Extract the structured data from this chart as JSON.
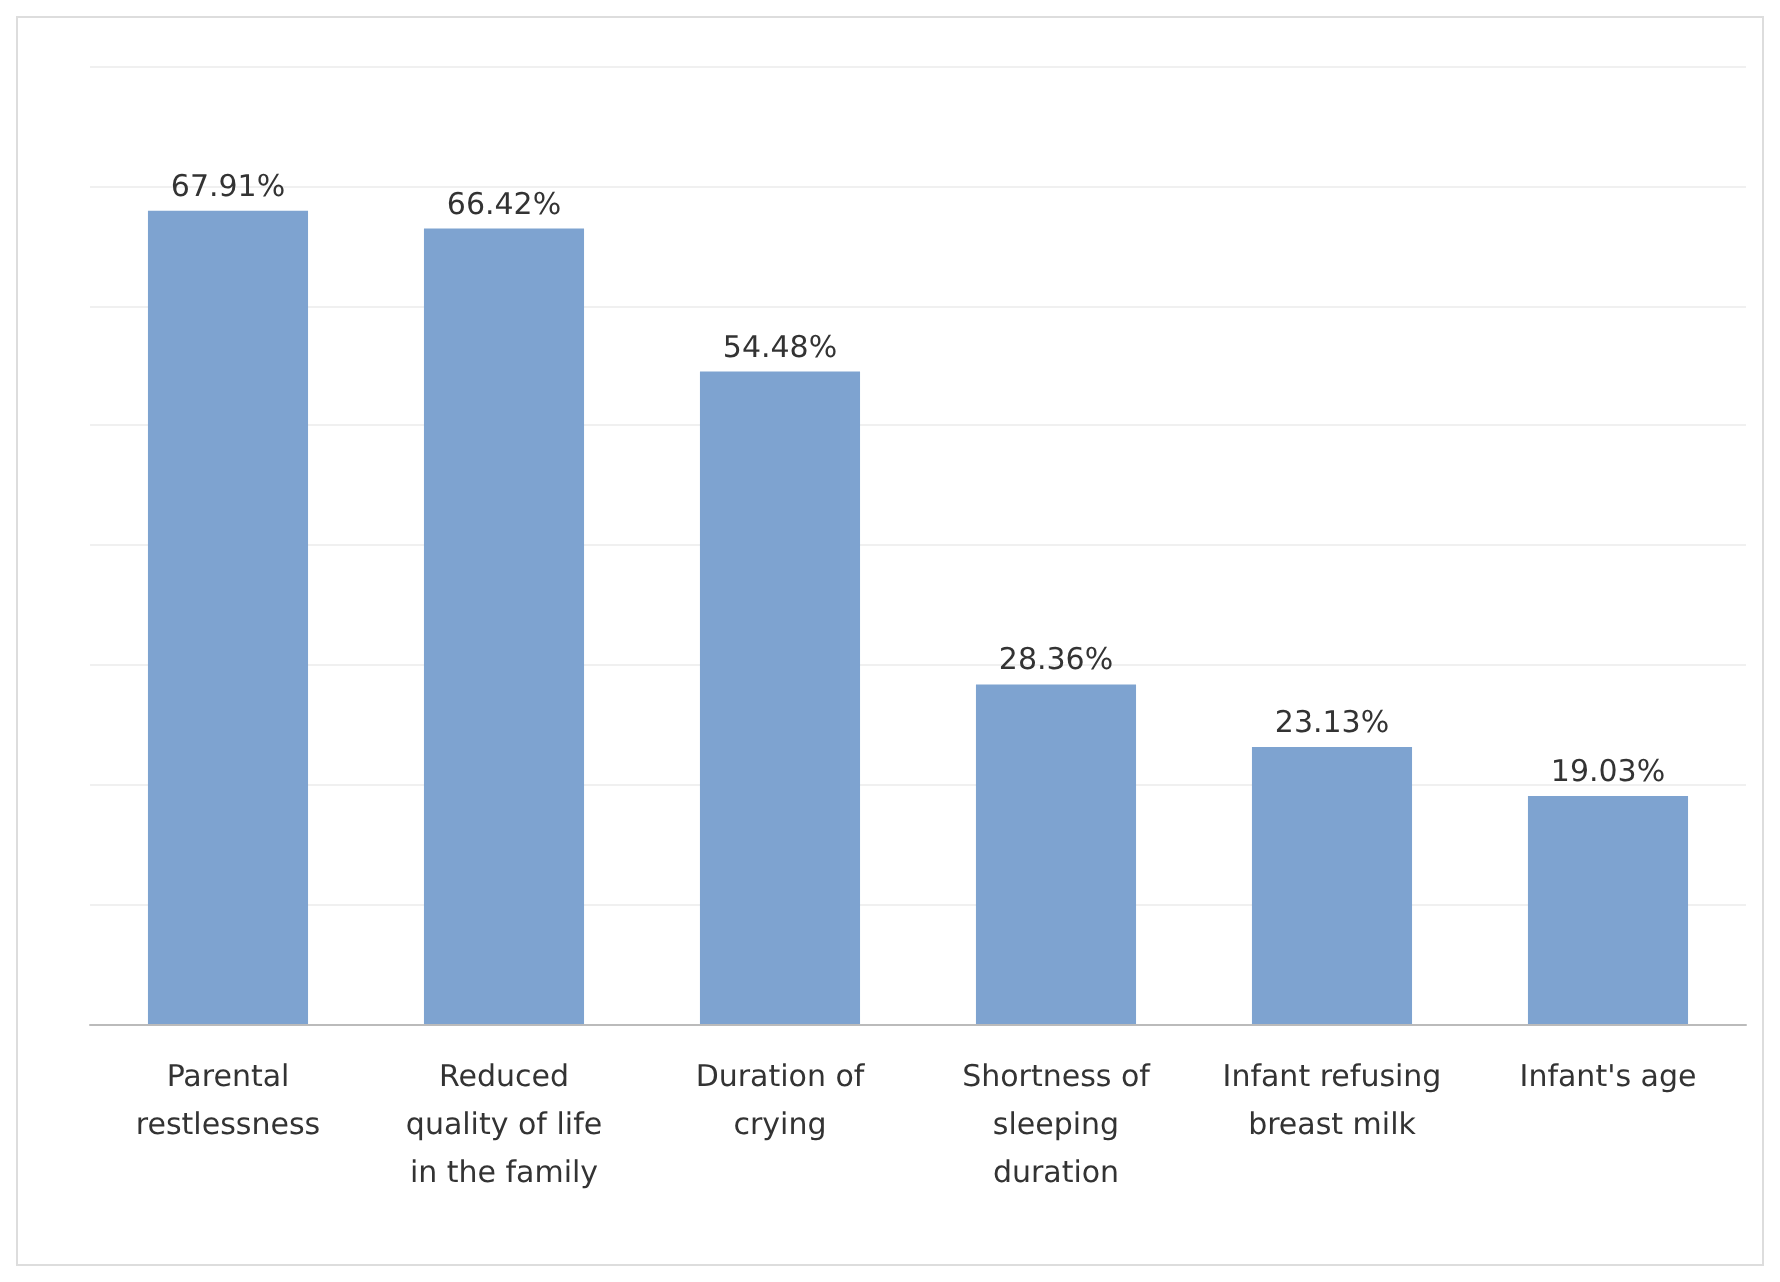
{
  "chart_data": {
    "type": "bar",
    "categories": [
      "Parental\nrestlessness",
      "Reduced\nquality of life\nin the family",
      "Duration of\ncrying",
      "Shortness of\nsleeping\nduration",
      "Infant refusing\nbreast milk",
      "Infant's age"
    ],
    "values": [
      67.91,
      66.42,
      54.48,
      28.36,
      23.13,
      19.03
    ],
    "value_labels": [
      "67.91%",
      "66.42%",
      "54.48%",
      "28.36%",
      "23.13%",
      "19.03%"
    ],
    "color": "#7ea3d0",
    "ylim": [
      0,
      80
    ],
    "yticks": [
      {
        "value": 0,
        "label": null
      },
      {
        "value": 10,
        "label": null
      },
      {
        "value": 20,
        "label": null
      },
      {
        "value": 30,
        "label": null
      },
      {
        "value": 40,
        "label": null
      },
      {
        "value": 50,
        "label": null
      },
      {
        "value": 60,
        "label": null
      },
      {
        "value": 70,
        "label": null
      },
      {
        "value": 80,
        "label": null
      }
    ],
    "grid": "y",
    "tick_labels": "x"
  }
}
